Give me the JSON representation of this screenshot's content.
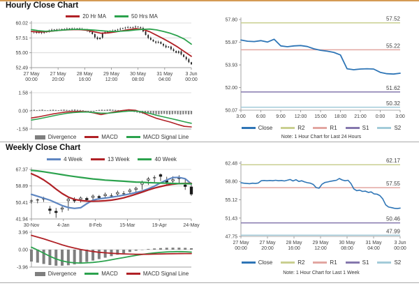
{
  "page": {
    "hourly_title": "Hourly Close Chart",
    "weekly_title": "Weekly Close Chart",
    "colors": {
      "accent_top_border": "#D49A54",
      "red_line": "#B02126",
      "green_line": "#2BA24D",
      "close_blue": "#2E75B6",
      "ma4_blue": "#5E86C1",
      "divergence_gray": "#7F7F7F",
      "r2_olive": "#C9CF90",
      "r1_rose": "#E2A6A1",
      "s1_purple": "#8577AD",
      "s2_cyan": "#A3CBD9",
      "candle_black": "#1A1A1A"
    }
  },
  "legends": {
    "hourly_price": [
      {
        "label": "20 Hr MA",
        "color": "#B02126"
      },
      {
        "label": "50 Hrs MA",
        "color": "#2BA24D"
      }
    ],
    "hourly_macd": [
      {
        "label": "Divergence",
        "color": "#7F7F7F",
        "block": true
      },
      {
        "label": "MACD",
        "color": "#B02126"
      },
      {
        "label": "MACD Signal Line",
        "color": "#2BA24D"
      }
    ],
    "weekly_price": [
      {
        "label": "4 Week",
        "color": "#5E86C1"
      },
      {
        "label": "13 Week",
        "color": "#B02126"
      },
      {
        "label": "40 Week",
        "color": "#2BA24D"
      }
    ],
    "weekly_macd": [
      {
        "label": "Divergence",
        "color": "#7F7F7F",
        "block": true
      },
      {
        "label": "MACD",
        "color": "#2BA24D"
      },
      {
        "label": "MACD Signal Line",
        "color": "#B02126"
      }
    ],
    "sr_24h": [
      {
        "label": "Close",
        "color": "#2E75B6"
      },
      {
        "label": "R2",
        "color": "#C9CF90"
      },
      {
        "label": "R1",
        "color": "#E2A6A1"
      },
      {
        "label": "S1",
        "color": "#8577AD"
      },
      {
        "label": "S2",
        "color": "#A3CBD9"
      }
    ],
    "sr_1week": [
      {
        "label": "Close",
        "color": "#2E75B6"
      },
      {
        "label": "R2",
        "color": "#C9CF90"
      },
      {
        "label": "R1",
        "color": "#E2A6A1"
      },
      {
        "label": "S1",
        "color": "#8577AD"
      },
      {
        "label": "S2",
        "color": "#A3CBD9"
      }
    ]
  },
  "chart_data": [
    {
      "id": "hourly_price",
      "type": "candlestick",
      "title": "Hourly Close Chart",
      "ylim": [
        52.49,
        60.02
      ],
      "y_ticks": [
        "60.02",
        "57.51",
        "55.00",
        "52.49"
      ],
      "x_ticks": [
        "27 May|00:00",
        "27 May|20:00",
        "28 May|16:00",
        "29 May|12:00",
        "30 May|08:00",
        "31 May|04:00",
        "3 Jun|00:00"
      ],
      "grid": true,
      "candles_close": [
        58.55,
        58.45,
        58.35,
        58.42,
        58.35,
        58.45,
        58.62,
        58.78,
        58.88,
        58.92,
        58.85,
        58.9,
        59.0,
        58.95,
        59.05,
        59.1,
        59.0,
        59.05,
        59.1,
        59.0,
        58.95,
        58.9,
        58.72,
        58.5,
        58.15,
        57.6,
        57.3,
        57.55,
        58.3,
        58.5,
        58.55,
        58.65,
        58.72,
        58.82,
        58.92,
        59.05,
        59.15,
        59.25,
        59.32,
        59.22,
        59.3,
        59.4,
        59.3,
        59.18,
        58.6,
        58.0,
        57.5,
        57.2,
        56.9,
        56.7,
        56.85,
        56.5,
        56.2,
        55.9,
        56.05,
        55.6,
        55.3,
        55.0,
        55.25,
        54.7,
        54.3,
        53.9,
        53.4,
        53.05
      ],
      "series": [
        {
          "name": "20 Hr MA",
          "color": "#B02126",
          "width": 1.8,
          "values": [
            58.6,
            58.5,
            58.55,
            58.65,
            58.78,
            58.85,
            58.9,
            58.9,
            58.8,
            58.55,
            58.3,
            58.35,
            58.5,
            58.7,
            58.9,
            59.05,
            58.95,
            58.55,
            57.95,
            57.35,
            56.7,
            56.0,
            55.2,
            54.4
          ]
        },
        {
          "name": "50 Hrs MA",
          "color": "#2BA24D",
          "width": 1.8,
          "values": [
            58.9,
            58.72,
            58.62,
            58.68,
            58.78,
            58.88,
            58.95,
            58.95,
            58.9,
            58.82,
            58.72,
            58.62,
            58.6,
            58.65,
            58.72,
            58.85,
            58.95,
            59.0,
            58.85,
            58.6,
            58.28,
            57.85,
            57.3,
            56.45
          ]
        }
      ]
    },
    {
      "id": "hourly_macd",
      "type": "bar+line",
      "ylim": [
        -1.58,
        1.58
      ],
      "y_ticks": [
        "1.58",
        "0.00",
        "-1.58"
      ],
      "grid": true,
      "bars": {
        "name": "Divergence",
        "color": "#7F7F7F",
        "values": [
          0.08,
          0.1,
          0.06,
          0.09,
          0.12,
          0.07,
          0.05,
          0.09,
          0.11,
          0.08,
          0.06,
          0.1,
          0.12,
          0.09,
          0.07,
          0.11,
          0.13,
          0.1,
          0.08,
          0.06,
          -0.05,
          -0.09,
          -0.12,
          -0.07,
          0.06,
          0.09,
          0.11,
          0.09,
          0.12,
          0.14,
          0.11,
          0.09,
          0.07,
          0.05,
          0.08,
          0.1,
          0.07,
          -0.06,
          -0.1,
          -0.15,
          -0.2,
          -0.24,
          -0.27,
          -0.25,
          -0.22,
          -0.26,
          -0.29,
          -0.31,
          -0.28,
          -0.26,
          -0.29,
          -0.31,
          -0.29,
          -0.27,
          -0.3,
          -0.32,
          -0.3,
          -0.28,
          -0.31,
          -0.29
        ]
      },
      "series": [
        {
          "name": "MACD",
          "color": "#B02126",
          "width": 1.6,
          "values": [
            -0.62,
            -0.52,
            -0.4,
            -0.28,
            -0.18,
            -0.1,
            -0.06,
            -0.05,
            -0.08,
            -0.18,
            -0.32,
            -0.2,
            -0.08,
            0.02,
            0.1,
            0.05,
            -0.15,
            -0.42,
            -0.65,
            -0.82,
            -0.98,
            -1.18,
            -1.35,
            -1.4
          ]
        },
        {
          "name": "MACD Signal Line",
          "color": "#2BA24D",
          "width": 1.6,
          "values": [
            -0.8,
            -0.7,
            -0.58,
            -0.45,
            -0.33,
            -0.22,
            -0.15,
            -0.11,
            -0.1,
            -0.14,
            -0.2,
            -0.2,
            -0.14,
            -0.07,
            -0.02,
            -0.02,
            -0.1,
            -0.22,
            -0.38,
            -0.52,
            -0.66,
            -0.8,
            -0.95,
            -1.08
          ]
        }
      ]
    },
    {
      "id": "sr_24h",
      "type": "line",
      "note": "Note: 1 Hour Chart for Last 24 Hours",
      "ylim": [
        50.07,
        57.8
      ],
      "y_ticks": [
        "57.80",
        "55.87",
        "53.93",
        "52.00",
        "50.07"
      ],
      "x_ticks": [
        "3:00",
        "6:00",
        "9:00",
        "12:00",
        "15:00",
        "18:00",
        "21:00",
        "0:00",
        "3:00"
      ],
      "grid": false,
      "levels": [
        {
          "name": "R2",
          "label": "57.52",
          "value": 57.52,
          "color": "#C9CF90"
        },
        {
          "name": "R1",
          "label": "55.22",
          "value": 55.22,
          "color": "#E2A6A1"
        },
        {
          "name": "S1",
          "label": "51.62",
          "value": 51.62,
          "color": "#8577AD"
        },
        {
          "name": "S2",
          "label": "50.32",
          "value": 50.32,
          "color": "#A3CBD9"
        }
      ],
      "series": [
        {
          "name": "Close",
          "color": "#2E75B6",
          "width": 1.8,
          "values": [
            56.05,
            55.95,
            55.92,
            56.0,
            55.88,
            56.12,
            55.55,
            55.48,
            55.55,
            55.58,
            55.5,
            55.3,
            55.18,
            55.1,
            55.0,
            54.78,
            53.6,
            53.52,
            53.58,
            53.6,
            53.58,
            53.3,
            53.18,
            53.15,
            53.22
          ]
        }
      ]
    },
    {
      "id": "weekly_price",
      "type": "candlestick",
      "title": "Weekly Close Chart",
      "ylim": [
        41.94,
        67.37
      ],
      "y_ticks": [
        "67.37",
        "58.89",
        "50.41",
        "41.94"
      ],
      "x_ticks": [
        "30-Nov",
        "4-Jan",
        "8-Feb",
        "15-Mar",
        "19-Apr",
        "24-May"
      ],
      "grid": true,
      "candles_ohlc": [
        [
          49.8,
          52.1,
          50.9,
          51.2
        ],
        [
          50.0,
          52.4,
          51.4,
          51.7
        ],
        [
          50.7,
          53.3,
          52.5,
          52.2
        ],
        [
          44.5,
          48.6,
          47.1,
          46.3
        ],
        [
          42.5,
          47.6,
          45.9,
          45.2
        ],
        [
          45.4,
          48.9,
          47.0,
          47.6
        ],
        [
          46.2,
          52.8,
          51.3,
          52.1
        ],
        [
          50.2,
          53.1,
          52.0,
          51.2
        ],
        [
          50.4,
          53.5,
          52.0,
          52.7
        ],
        [
          50.8,
          53.3,
          52.5,
          51.8
        ],
        [
          51.5,
          54.5,
          53.0,
          53.7
        ],
        [
          51.8,
          54.3,
          53.5,
          52.9
        ],
        [
          52.8,
          55.5,
          53.9,
          54.5
        ],
        [
          52.9,
          55.1,
          54.3,
          53.8
        ],
        [
          53.8,
          56.5,
          54.8,
          55.5
        ],
        [
          53.9,
          56.3,
          55.4,
          54.9
        ],
        [
          54.8,
          57.6,
          56.0,
          56.7
        ],
        [
          55.6,
          58.5,
          57.1,
          57.7
        ],
        [
          57.0,
          61.6,
          59.8,
          60.5
        ],
        [
          59.4,
          63.5,
          61.9,
          62.5
        ],
        [
          60.8,
          64.3,
          62.6,
          63.1
        ],
        [
          61.4,
          65.3,
          64.7,
          63.8
        ],
        [
          59.7,
          63.6,
          61.6,
          60.9
        ],
        [
          60.2,
          63.9,
          61.5,
          62.1
        ],
        [
          60.4,
          64.4,
          62.2,
          62.7
        ],
        [
          56.9,
          62.9,
          59.4,
          58.6
        ],
        [
          53.8,
          59.6,
          58.4,
          54.7
        ]
      ],
      "series": [
        {
          "name": "4 Week",
          "color": "#5E86C1",
          "width": 2.2,
          "values": [
            54.6,
            53.6,
            52.6,
            51.6,
            50.2,
            48.8,
            47.8,
            47.4,
            47.7,
            49.8,
            51.6,
            52.3,
            52.7,
            53.1,
            53.6,
            54.2,
            54.8,
            55.5,
            56.3,
            57.4,
            58.8,
            60.5,
            62.0,
            63.2,
            63.3,
            62.6,
            60.0
          ]
        },
        {
          "name": "13 Week",
          "color": "#B02126",
          "width": 2.2,
          "values": [
            65.2,
            63.8,
            62.0,
            59.8,
            57.3,
            55.0,
            53.2,
            52.0,
            51.4,
            51.1,
            51.0,
            51.1,
            51.3,
            51.6,
            52.1,
            52.8,
            53.7,
            54.7,
            55.7,
            56.8,
            57.8,
            58.6,
            59.3,
            59.8,
            60.1,
            60.2,
            60.2
          ]
        },
        {
          "name": "40 Week",
          "color": "#2BA24D",
          "width": 2.2,
          "values": [
            66.9,
            66.6,
            66.2,
            65.7,
            65.2,
            64.7,
            64.2,
            63.7,
            63.3,
            62.9,
            62.5,
            62.2,
            61.9,
            61.7,
            61.5,
            61.3,
            61.1,
            60.9,
            60.8,
            60.6,
            60.5,
            60.4,
            60.3,
            60.2,
            60.1,
            60.1,
            60.0
          ]
        }
      ]
    },
    {
      "id": "weekly_macd",
      "type": "bar+line",
      "ylim": [
        -3.96,
        3.96
      ],
      "y_ticks": [
        "3.96",
        "0.00",
        "-3.96"
      ],
      "grid": true,
      "bars": {
        "name": "Divergence",
        "color": "#7F7F7F",
        "values": [
          -2.7,
          -2.95,
          -3.25,
          -3.5,
          -3.65,
          -3.65,
          -3.55,
          -3.35,
          -3.1,
          -2.8,
          -2.48,
          -2.15,
          -1.83,
          -1.48,
          -1.15,
          -0.83,
          -0.53,
          -0.25,
          -0.04,
          0.15,
          0.27,
          0.36,
          0.43,
          0.45,
          0.45,
          0.41,
          0.33
        ]
      },
      "series": [
        {
          "name": "MACD",
          "color": "#2BA24D",
          "width": 1.8,
          "values": [
            0.55,
            -0.1,
            -0.8,
            -1.5,
            -2.1,
            -2.55,
            -2.85,
            -3.0,
            -3.05,
            -3.0,
            -2.9,
            -2.75,
            -2.55,
            -2.3,
            -2.05,
            -1.8,
            -1.55,
            -1.3,
            -1.1,
            -0.9,
            -0.75,
            -0.62,
            -0.52,
            -0.47,
            -0.45,
            -0.47,
            -0.55
          ]
        },
        {
          "name": "MACD Signal Line",
          "color": "#B02126",
          "width": 1.8,
          "values": [
            3.25,
            2.85,
            2.45,
            2.0,
            1.55,
            1.1,
            0.7,
            0.35,
            0.05,
            -0.2,
            -0.42,
            -0.6,
            -0.72,
            -0.82,
            -0.9,
            -0.97,
            -1.02,
            -1.05,
            -1.06,
            -1.05,
            -1.02,
            -0.98,
            -0.95,
            -0.92,
            -0.9,
            -0.88,
            -0.88
          ]
        }
      ]
    },
    {
      "id": "sr_1week",
      "type": "line",
      "note": "Note: 1 Hour Chart for Last 1 Week",
      "ylim": [
        47.75,
        62.48
      ],
      "y_ticks": [
        "62.48",
        "58.80",
        "55.12",
        "51.43",
        "47.75"
      ],
      "x_ticks": [
        "27 May|00:00",
        "27 May|20:00",
        "28 May|16:00",
        "29 May|12:00",
        "30 May|08:00",
        "31 May|04:00",
        "3 Jun|00:00"
      ],
      "grid": false,
      "levels": [
        {
          "name": "R2",
          "label": "62.17",
          "value": 62.17,
          "color": "#C9CF90"
        },
        {
          "name": "R1",
          "label": "57.55",
          "value": 57.55,
          "color": "#E2A6A1"
        },
        {
          "name": "S1",
          "label": "50.46",
          "value": 50.46,
          "color": "#8577AD"
        },
        {
          "name": "S2",
          "label": "47.99",
          "value": 47.99,
          "color": "#A3CBD9"
        }
      ],
      "series": [
        {
          "name": "Close",
          "color": "#2E75B6",
          "width": 1.6,
          "values": [
            58.55,
            58.45,
            58.4,
            58.35,
            58.45,
            58.4,
            58.5,
            58.95,
            59.0,
            58.95,
            59.0,
            58.95,
            59.05,
            58.95,
            59.0,
            58.9,
            59.05,
            59.2,
            58.9,
            59.15,
            58.8,
            58.95,
            58.7,
            58.55,
            58.45,
            58.2,
            57.55,
            57.45,
            58.25,
            58.6,
            58.7,
            58.85,
            58.95,
            59.05,
            59.4,
            59.1,
            58.95,
            59.05,
            58.4,
            57.3,
            56.95,
            57.05,
            56.8,
            56.85,
            56.6,
            56.7,
            56.3,
            56.25,
            55.95,
            55.3,
            54.1,
            53.65,
            53.55,
            53.4,
            53.35,
            53.45
          ]
        }
      ]
    }
  ]
}
